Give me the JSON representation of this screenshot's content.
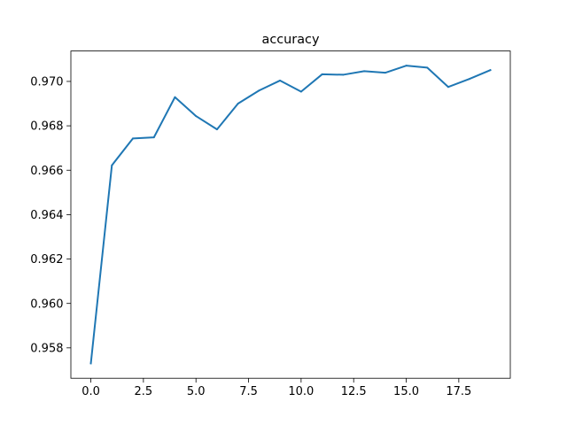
{
  "chart_data": {
    "type": "line",
    "title": "accuracy",
    "xlabel": "",
    "ylabel": "",
    "grid": false,
    "xlim": [
      -0.95,
      19.95
    ],
    "ylim": [
      0.95663,
      0.97137
    ],
    "xticks": [
      0,
      2.5,
      5,
      7.5,
      10,
      12.5,
      15,
      17.5
    ],
    "xtick_labels": [
      "0.0",
      "2.5",
      "5.0",
      "7.5",
      "10.0",
      "12.5",
      "15.0",
      "17.5"
    ],
    "yticks": [
      0.958,
      0.96,
      0.962,
      0.964,
      0.966,
      0.968,
      0.97
    ],
    "ytick_labels": [
      "0.958",
      "0.960",
      "0.962",
      "0.964",
      "0.966",
      "0.968",
      "0.970"
    ],
    "line_color": "#1f77b4",
    "series": [
      {
        "x": [
          0,
          1,
          2,
          3,
          4,
          5,
          6,
          7,
          8,
          9,
          10,
          11,
          12,
          13,
          14,
          15,
          16,
          17,
          18,
          19
        ],
        "y": [
          0.9573,
          0.96622,
          0.96743,
          0.96748,
          0.96929,
          0.96844,
          0.96784,
          0.969,
          0.96959,
          0.97004,
          0.96954,
          0.97032,
          0.9703,
          0.97046,
          0.97039,
          0.97071,
          0.97062,
          0.96975,
          0.97011,
          0.97051
        ]
      }
    ]
  }
}
